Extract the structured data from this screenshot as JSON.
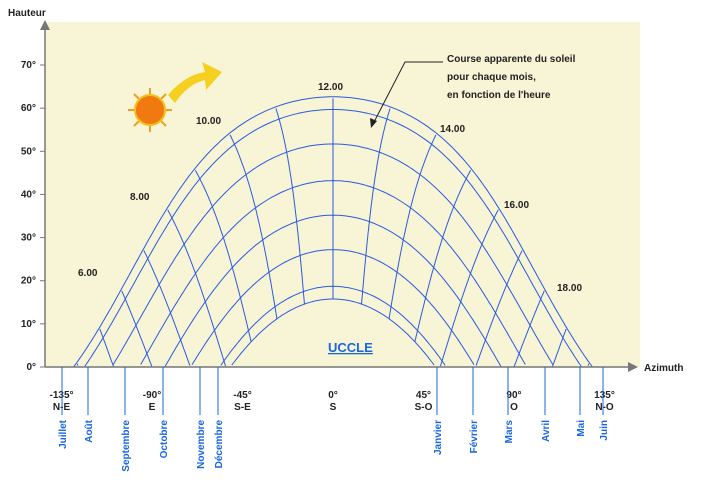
{
  "title": "UCCLE",
  "axes": {
    "y_label": "Hauteur",
    "x_label": "Azimuth",
    "yticks": [
      {
        "value": 0,
        "label": "0°"
      },
      {
        "value": 10,
        "label": "10°"
      },
      {
        "value": 20,
        "label": "20°"
      },
      {
        "value": 30,
        "label": "30°"
      },
      {
        "value": 40,
        "label": "40°"
      },
      {
        "value": 50,
        "label": "50°"
      },
      {
        "value": 60,
        "label": "60°"
      },
      {
        "value": 70,
        "label": "70°"
      }
    ],
    "xticks": [
      {
        "value": -135,
        "label": "-135°",
        "direction": "N-E"
      },
      {
        "value": -90,
        "label": "-90°",
        "direction": "E"
      },
      {
        "value": -45,
        "label": "-45°",
        "direction": "S-E"
      },
      {
        "value": 0,
        "label": "0°",
        "direction": "S"
      },
      {
        "value": 45,
        "label": "45°",
        "direction": "S-O"
      },
      {
        "value": 90,
        "label": "90°",
        "direction": "O"
      },
      {
        "value": 135,
        "label": "135°",
        "direction": "N-O"
      }
    ]
  },
  "months": [
    "Juillet",
    "Août",
    "Septembre",
    "Octobre",
    "Novembre",
    "Décembre",
    "Janvier",
    "Février",
    "Mars",
    "Avril",
    "Mai",
    "Juin"
  ],
  "hours": [
    "6.00",
    "8.00",
    "10.00",
    "12.00",
    "14.00",
    "16.00",
    "18.00"
  ],
  "annotation": [
    "Course apparente du soleil",
    "pour chaque mois,",
    "en fonction de l'heure"
  ]
}
